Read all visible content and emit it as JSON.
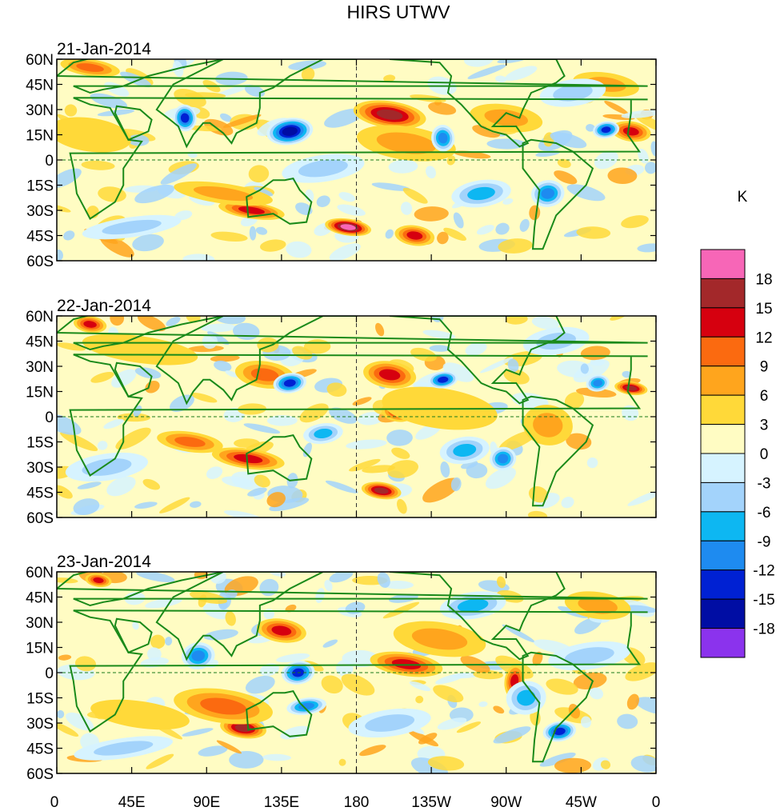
{
  "chart_data": {
    "type": "heatmap",
    "title": "HIRS UTWV",
    "colorbar": {
      "unit": "K",
      "levels": [
        "18",
        "15",
        "12",
        "9",
        "6",
        "3",
        "0",
        "-3",
        "-6",
        "-9",
        "-12",
        "-15",
        "-18"
      ],
      "colors": [
        "#f766b7",
        "#a3282a",
        "#d6000f",
        "#fb6a10",
        "#ffa51d",
        "#ffd939",
        "#fffcc3",
        "#d6f3ff",
        "#a3d3fb",
        "#0db7f2",
        "#1e8bf0",
        "#0021d3",
        "#000da4",
        "#8b33ed"
      ]
    },
    "xticks": [
      "0",
      "45E",
      "90E",
      "135E",
      "180",
      "135W",
      "90W",
      "45W",
      "0"
    ],
    "yticks": [
      "60N",
      "45N",
      "30N",
      "15N",
      "0",
      "15S",
      "30S",
      "45S",
      "60S"
    ],
    "xlim": [
      0,
      360
    ],
    "ylim": [
      -60,
      60
    ],
    "panels": [
      {
        "date": "21-Jan-2014",
        "anomalies": [
          {
            "lon": 200,
            "lat": 27,
            "value": 15,
            "rx": 22,
            "ry": 8
          },
          {
            "lon": 175,
            "lat": -40,
            "value": 18,
            "rx": 14,
            "ry": 5
          },
          {
            "lon": 117,
            "lat": -30,
            "value": 12,
            "rx": 20,
            "ry": 5
          },
          {
            "lon": 20,
            "lat": 55,
            "value": 9,
            "rx": 18,
            "ry": 5
          },
          {
            "lon": 345,
            "lat": 17,
            "value": 12,
            "rx": 12,
            "ry": 6
          },
          {
            "lon": 210,
            "lat": 10,
            "value": 6,
            "rx": 30,
            "ry": 10
          },
          {
            "lon": 100,
            "lat": -20,
            "value": 6,
            "rx": 30,
            "ry": 6
          },
          {
            "lon": 330,
            "lat": 45,
            "value": 6,
            "rx": 20,
            "ry": 7
          },
          {
            "lon": 270,
            "lat": 25,
            "value": 6,
            "rx": 22,
            "ry": 8
          },
          {
            "lon": 20,
            "lat": 15,
            "value": 3,
            "rx": 25,
            "ry": 10
          },
          {
            "lon": 215,
            "lat": -45,
            "value": 12,
            "rx": 12,
            "ry": 6
          },
          {
            "lon": 140,
            "lat": 17,
            "value": -18,
            "rx": 14,
            "ry": 8
          },
          {
            "lon": 77,
            "lat": 25,
            "value": -15,
            "rx": 7,
            "ry": 8
          },
          {
            "lon": 330,
            "lat": 18,
            "value": -15,
            "rx": 8,
            "ry": 5
          },
          {
            "lon": 232,
            "lat": 13,
            "value": -12,
            "rx": 7,
            "ry": 8
          },
          {
            "lon": 295,
            "lat": -20,
            "value": -12,
            "rx": 10,
            "ry": 8
          },
          {
            "lon": 310,
            "lat": 40,
            "value": -6,
            "rx": 20,
            "ry": 8
          },
          {
            "lon": 255,
            "lat": -20,
            "value": -9,
            "rx": 18,
            "ry": 8
          },
          {
            "lon": 45,
            "lat": -40,
            "value": -6,
            "rx": 30,
            "ry": 6
          },
          {
            "lon": 160,
            "lat": -5,
            "value": -6,
            "rx": 25,
            "ry": 8
          }
        ]
      },
      {
        "date": "22-Jan-2014",
        "anomalies": [
          {
            "lon": 200,
            "lat": 25,
            "value": 12,
            "rx": 16,
            "ry": 8
          },
          {
            "lon": 195,
            "lat": -44,
            "value": 15,
            "rx": 12,
            "ry": 5
          },
          {
            "lon": 205,
            "lat": 3,
            "value": 12,
            "rx": 10,
            "ry": 6
          },
          {
            "lon": 345,
            "lat": 17,
            "value": 15,
            "rx": 10,
            "ry": 4
          },
          {
            "lon": 20,
            "lat": 55,
            "value": 12,
            "rx": 10,
            "ry": 5
          },
          {
            "lon": 115,
            "lat": -25,
            "value": 12,
            "rx": 22,
            "ry": 6
          },
          {
            "lon": 80,
            "lat": -15,
            "value": 9,
            "rx": 20,
            "ry": 6
          },
          {
            "lon": 125,
            "lat": 25,
            "value": 9,
            "rx": 18,
            "ry": 8
          },
          {
            "lon": 295,
            "lat": -5,
            "value": 6,
            "rx": 15,
            "ry": 12
          },
          {
            "lon": 230,
            "lat": 5,
            "value": 3,
            "rx": 35,
            "ry": 12
          },
          {
            "lon": 50,
            "lat": 40,
            "value": 3,
            "rx": 35,
            "ry": 8
          },
          {
            "lon": 140,
            "lat": 20,
            "value": -15,
            "rx": 10,
            "ry": 6
          },
          {
            "lon": 232,
            "lat": 22,
            "value": -15,
            "rx": 9,
            "ry": 5
          },
          {
            "lon": 325,
            "lat": 20,
            "value": -12,
            "rx": 7,
            "ry": 5
          },
          {
            "lon": 268,
            "lat": -25,
            "value": -12,
            "rx": 8,
            "ry": 7
          },
          {
            "lon": 245,
            "lat": -20,
            "value": -9,
            "rx": 15,
            "ry": 8
          },
          {
            "lon": 160,
            "lat": -10,
            "value": -9,
            "rx": 12,
            "ry": 6
          },
          {
            "lon": 30,
            "lat": -30,
            "value": -6,
            "rx": 25,
            "ry": 8
          },
          {
            "lon": 300,
            "lat": 45,
            "value": -6,
            "rx": 20,
            "ry": 8
          }
        ]
      },
      {
        "date": "23-Jan-2014",
        "anomalies": [
          {
            "lon": 112,
            "lat": -33,
            "value": 15,
            "rx": 14,
            "ry": 6
          },
          {
            "lon": 210,
            "lat": 5,
            "value": 12,
            "rx": 22,
            "ry": 7
          },
          {
            "lon": 135,
            "lat": 25,
            "value": 12,
            "rx": 15,
            "ry": 7
          },
          {
            "lon": 275,
            "lat": -5,
            "value": 12,
            "rx": 6,
            "ry": 10
          },
          {
            "lon": 25,
            "lat": 55,
            "value": 12,
            "rx": 8,
            "ry": 4
          },
          {
            "lon": 100,
            "lat": -20,
            "value": 9,
            "rx": 30,
            "ry": 10
          },
          {
            "lon": 230,
            "lat": 20,
            "value": 6,
            "rx": 28,
            "ry": 10
          },
          {
            "lon": 325,
            "lat": 40,
            "value": 6,
            "rx": 20,
            "ry": 8
          },
          {
            "lon": 50,
            "lat": -25,
            "value": 3,
            "rx": 30,
            "ry": 8
          },
          {
            "lon": 145,
            "lat": 0,
            "value": -15,
            "rx": 10,
            "ry": 7
          },
          {
            "lon": 302,
            "lat": -35,
            "value": -15,
            "rx": 10,
            "ry": 6
          },
          {
            "lon": 85,
            "lat": 10,
            "value": -12,
            "rx": 10,
            "ry": 8
          },
          {
            "lon": 150,
            "lat": -20,
            "value": -12,
            "rx": 12,
            "ry": 5
          },
          {
            "lon": 282,
            "lat": -15,
            "value": -9,
            "rx": 12,
            "ry": 10
          },
          {
            "lon": 250,
            "lat": 40,
            "value": -9,
            "rx": 20,
            "ry": 8
          },
          {
            "lon": 320,
            "lat": 10,
            "value": -6,
            "rx": 25,
            "ry": 8
          },
          {
            "lon": 200,
            "lat": -30,
            "value": -6,
            "rx": 25,
            "ry": 8
          },
          {
            "lon": 40,
            "lat": -45,
            "value": -6,
            "rx": 30,
            "ry": 6
          }
        ]
      }
    ]
  }
}
